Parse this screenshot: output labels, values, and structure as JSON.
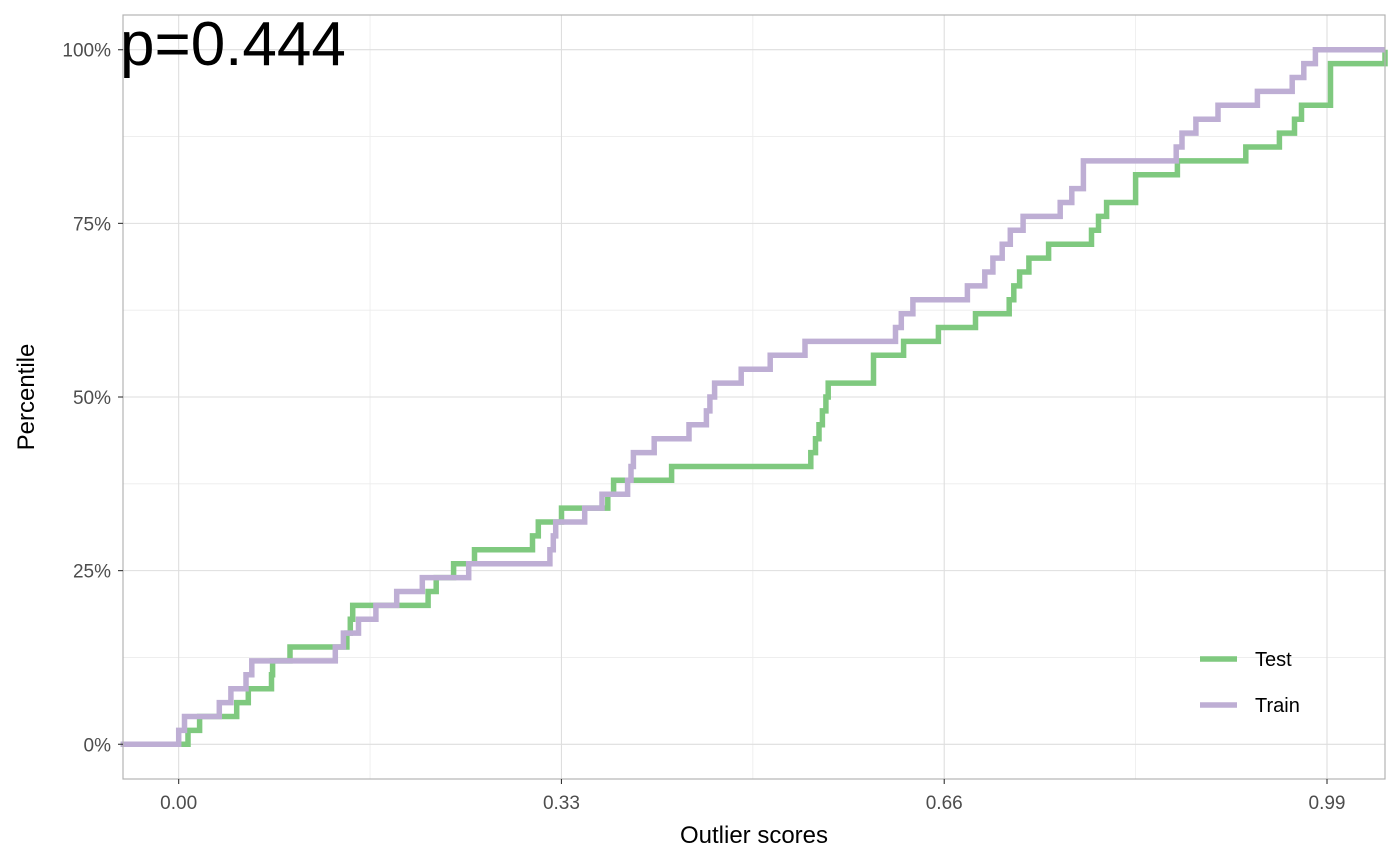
{
  "chart_data": {
    "type": "line",
    "step": true,
    "annotation": "p=0.444",
    "xlabel": "Outlier scores",
    "ylabel": "Percentile",
    "xlim": [
      -0.048,
      1.04
    ],
    "ylim": [
      -0.05,
      1.05
    ],
    "x_ticks": [
      0.0,
      0.33,
      0.66,
      0.99
    ],
    "x_tick_labels": [
      "0.00",
      "0.33",
      "0.66",
      "0.99"
    ],
    "y_ticks": [
      0,
      0.25,
      0.5,
      0.75,
      1.0
    ],
    "y_tick_labels": [
      "0%",
      "25%",
      "50%",
      "75%",
      "100%"
    ],
    "grid": true,
    "legend_position": "bottom-right",
    "colors": {
      "Test": "#7fc97f",
      "Train": "#beaed4",
      "grid_major": "#dedede",
      "grid_minor": "#ececec",
      "panel_border": "#b3b3b3"
    },
    "series": [
      {
        "name": "Test",
        "color": "#7fc97f",
        "x": [
          -0.05,
          0.008,
          0.018,
          0.05,
          0.06,
          0.08,
          0.081,
          0.096,
          0.145,
          0.148,
          0.15,
          0.215,
          0.222,
          0.237,
          0.255,
          0.305,
          0.31,
          0.33,
          0.37,
          0.375,
          0.425,
          0.545,
          0.549,
          0.552,
          0.555,
          0.558,
          0.56,
          0.599,
          0.625,
          0.655,
          0.687,
          0.716,
          0.72,
          0.725,
          0.733,
          0.75,
          0.787,
          0.793,
          0.8,
          0.825,
          0.861,
          0.92,
          0.949,
          0.962,
          0.968,
          0.993,
          1.04
        ],
        "y": [
          0,
          0.02,
          0.04,
          0.06,
          0.08,
          0.1,
          0.12,
          0.14,
          0.16,
          0.18,
          0.2,
          0.22,
          0.24,
          0.26,
          0.28,
          0.3,
          0.32,
          0.34,
          0.36,
          0.38,
          0.4,
          0.42,
          0.44,
          0.46,
          0.48,
          0.5,
          0.52,
          0.56,
          0.58,
          0.6,
          0.62,
          0.64,
          0.66,
          0.68,
          0.7,
          0.72,
          0.74,
          0.76,
          0.78,
          0.82,
          0.84,
          0.86,
          0.88,
          0.9,
          0.92,
          0.98,
          1.0
        ]
      },
      {
        "name": "Train",
        "color": "#beaed4",
        "x": [
          -0.05,
          0.0,
          0.005,
          0.035,
          0.045,
          0.058,
          0.063,
          0.135,
          0.142,
          0.155,
          0.17,
          0.188,
          0.21,
          0.25,
          0.32,
          0.323,
          0.325,
          0.35,
          0.365,
          0.387,
          0.39,
          0.392,
          0.41,
          0.44,
          0.455,
          0.458,
          0.462,
          0.485,
          0.51,
          0.54,
          0.618,
          0.623,
          0.633,
          0.68,
          0.695,
          0.702,
          0.71,
          0.717,
          0.728,
          0.76,
          0.77,
          0.78,
          0.86,
          0.865,
          0.877,
          0.896,
          0.93,
          0.96,
          0.97,
          0.98,
          1.04
        ],
        "y": [
          0,
          0.02,
          0.04,
          0.06,
          0.08,
          0.1,
          0.12,
          0.14,
          0.16,
          0.18,
          0.2,
          0.22,
          0.24,
          0.26,
          0.28,
          0.3,
          0.32,
          0.34,
          0.36,
          0.38,
          0.4,
          0.42,
          0.44,
          0.46,
          0.48,
          0.5,
          0.52,
          0.54,
          0.56,
          0.58,
          0.6,
          0.62,
          0.64,
          0.66,
          0.68,
          0.7,
          0.72,
          0.74,
          0.76,
          0.78,
          0.8,
          0.84,
          0.86,
          0.88,
          0.9,
          0.92,
          0.94,
          0.96,
          0.98,
          1.0,
          1.0
        ]
      }
    ]
  }
}
